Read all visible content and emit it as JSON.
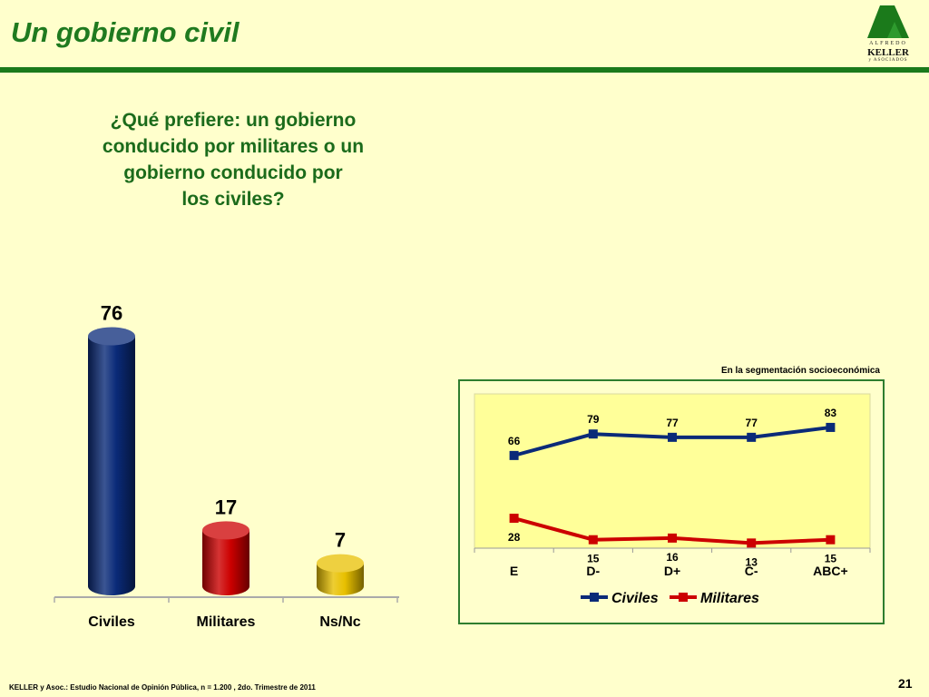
{
  "slide": {
    "title": "Un gobierno civil",
    "question_lines": [
      "¿Qué prefiere: un gobierno",
      "conducido por militares o un",
      "gobierno conducido por",
      "los civiles?"
    ],
    "footer": "KELLER y Asoc.: Estudio Nacional de Opinión Pública, n = 1.200 , 2do. Trimestre de 2011",
    "page_number": "21",
    "segment_label": "En la segmentación socioeconómica"
  },
  "logo": {
    "line1": "ALFREDO",
    "line2": "KELLER",
    "line3": "y ASOCIADOS",
    "color": "#1b7a1b"
  },
  "colors": {
    "title": "#1f7a1f",
    "rule": "#1b7a1b",
    "background": "#ffffcc",
    "plot_background": "#ffff99",
    "civiles": "#0a2a78",
    "militares": "#cc0000",
    "nsnc": "#e8c000"
  },
  "chart_data": [
    {
      "type": "bar",
      "categories": [
        "Civiles",
        "Militares",
        "Ns/Nc"
      ],
      "values": [
        76,
        17,
        7
      ],
      "colors": [
        "#0a2a78",
        "#cc0000",
        "#e8c000"
      ],
      "ylim": [
        0,
        80
      ]
    },
    {
      "type": "line",
      "categories": [
        "E",
        "D-",
        "D+",
        "C-",
        "ABC+"
      ],
      "series": [
        {
          "name": "Civiles",
          "values": [
            66,
            79,
            77,
            77,
            83
          ],
          "color": "#0a2a78"
        },
        {
          "name": "Militares",
          "values": [
            28,
            15,
            16,
            13,
            15
          ],
          "color": "#cc0000"
        }
      ],
      "legend": "bottom",
      "ylim": [
        0,
        100
      ]
    }
  ]
}
